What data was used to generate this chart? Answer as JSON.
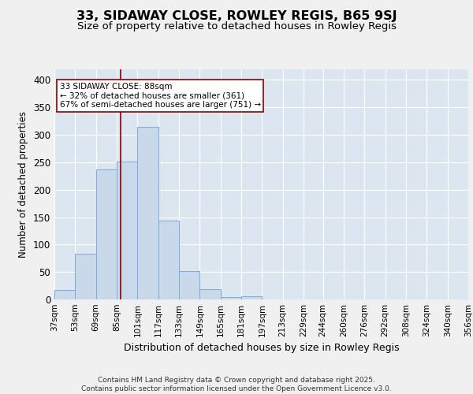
{
  "title1": "33, SIDAWAY CLOSE, ROWLEY REGIS, B65 9SJ",
  "title2": "Size of property relative to detached houses in Rowley Regis",
  "xlabel": "Distribution of detached houses by size in Rowley Regis",
  "ylabel": "Number of detached properties",
  "bar_counts": [
    17,
    83,
    237,
    251,
    315,
    143,
    51,
    19,
    5,
    6,
    0,
    0,
    0,
    0,
    0,
    0,
    0,
    0,
    0,
    0
  ],
  "bin_edges": [
    37,
    53,
    69,
    85,
    101,
    117,
    133,
    149,
    165,
    181,
    197,
    213,
    229,
    244,
    260,
    276,
    292,
    308,
    324,
    340,
    356
  ],
  "bin_labels": [
    "37sqm",
    "53sqm",
    "69sqm",
    "85sqm",
    "101sqm",
    "117sqm",
    "133sqm",
    "149sqm",
    "165sqm",
    "181sqm",
    "197sqm",
    "213sqm",
    "229sqm",
    "244sqm",
    "260sqm",
    "276sqm",
    "292sqm",
    "308sqm",
    "324sqm",
    "340sqm",
    "356sqm"
  ],
  "property_size": 88,
  "bar_color": "#c9d9ea",
  "bar_edge_color": "#7aace0",
  "red_line_color": "#8b0000",
  "bg_color": "#dce6f0",
  "grid_color": "#ffffff",
  "annotation_text": "33 SIDAWAY CLOSE: 88sqm\n← 32% of detached houses are smaller (361)\n67% of semi-detached houses are larger (751) →",
  "annotation_box_color": "#ffffff",
  "annotation_box_edge": "#8b0000",
  "ylim": [
    0,
    420
  ],
  "yticks": [
    0,
    50,
    100,
    150,
    200,
    250,
    300,
    350,
    400
  ],
  "footer_text": "Contains HM Land Registry data © Crown copyright and database right 2025.\nContains public sector information licensed under the Open Government Licence v3.0.",
  "title1_fontsize": 11.5,
  "title2_fontsize": 9.5,
  "xlabel_fontsize": 9,
  "ylabel_fontsize": 8.5,
  "tick_fontsize": 7.5,
  "annotation_fontsize": 7.5,
  "footer_fontsize": 6.5
}
